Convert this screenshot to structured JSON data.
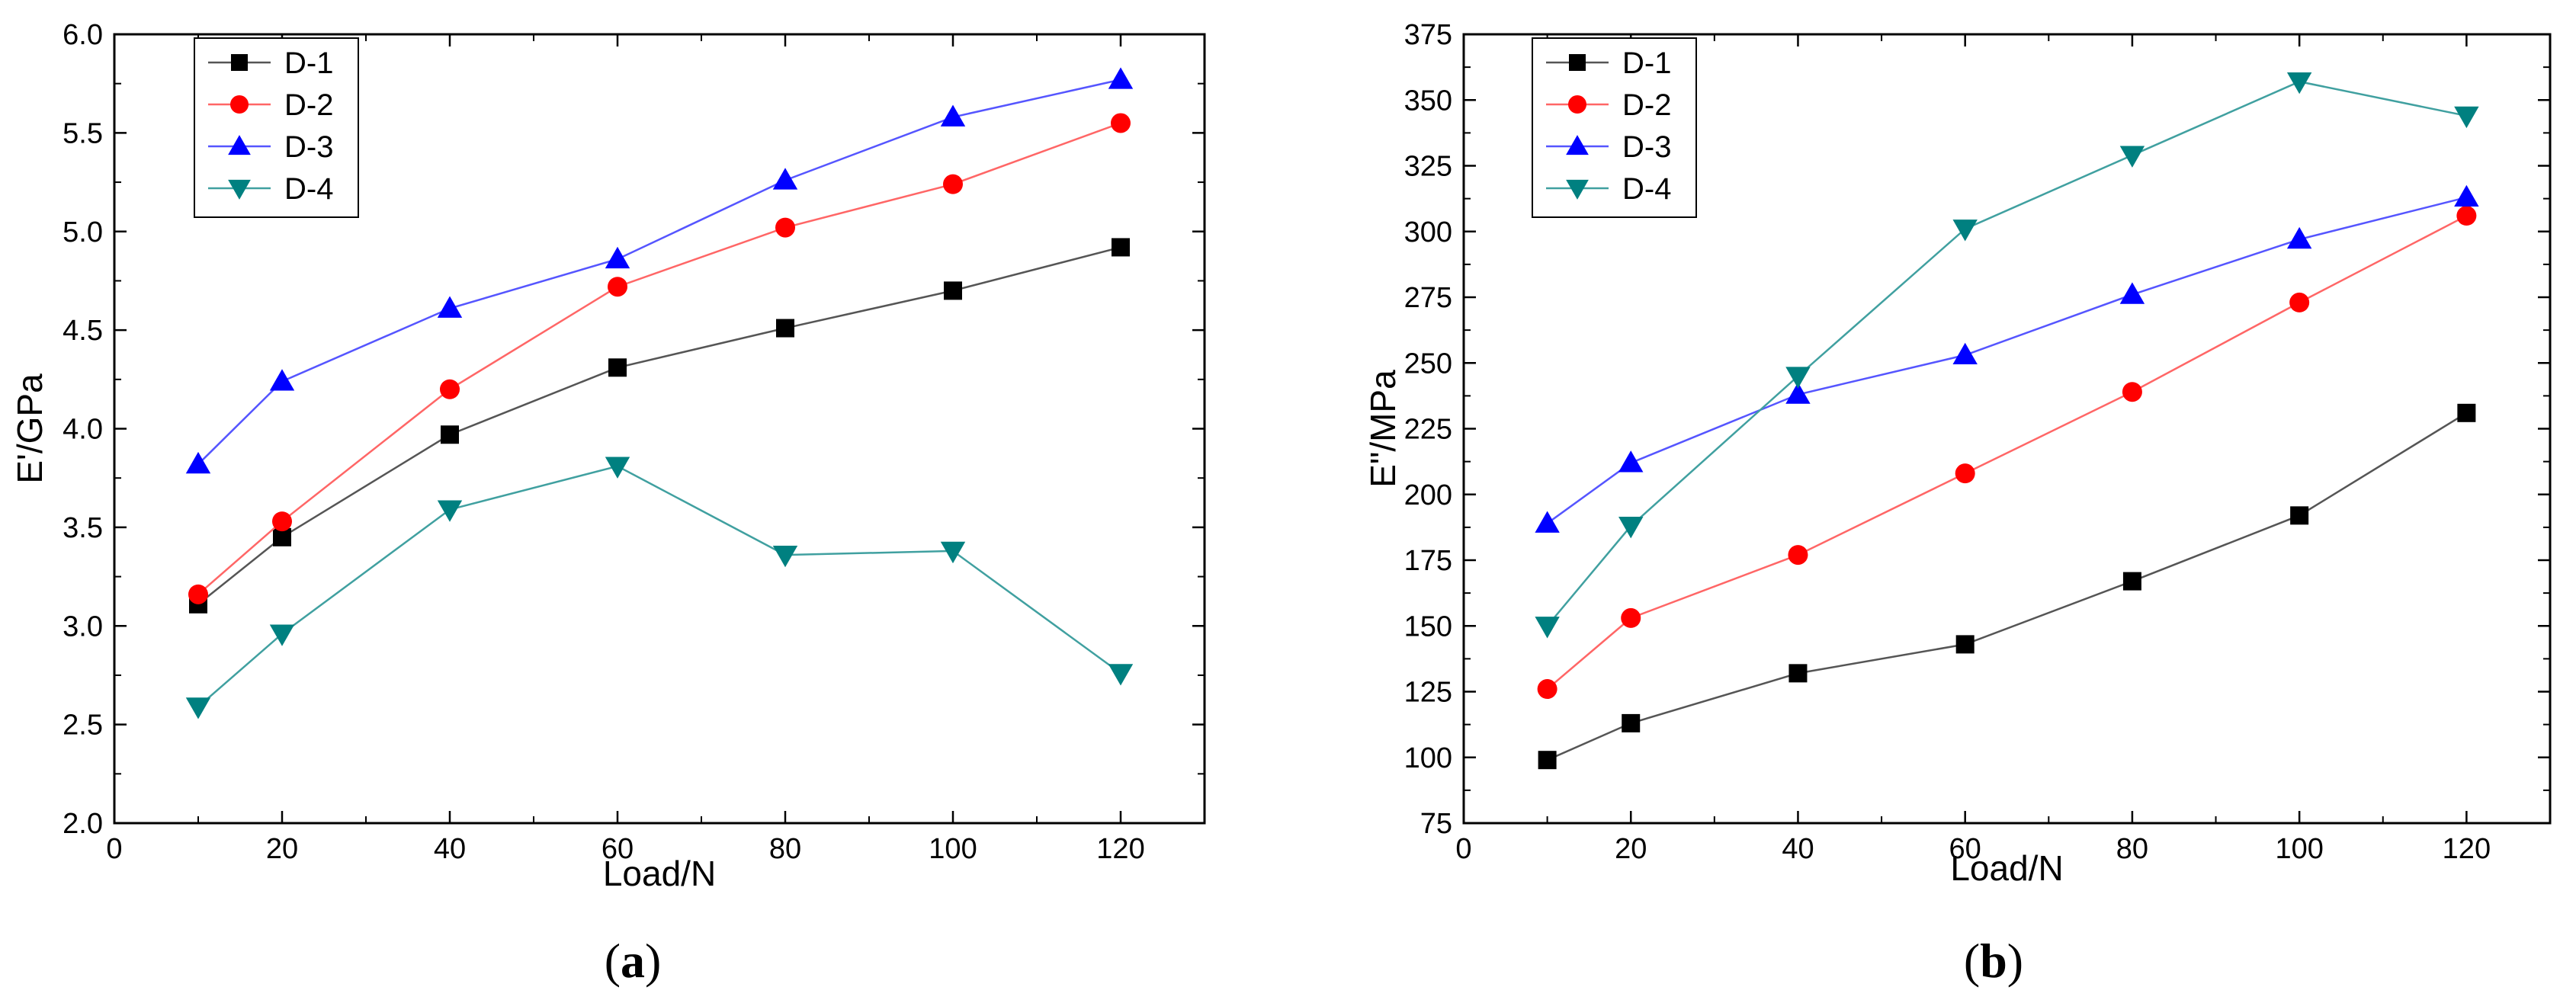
{
  "chart_data": [
    {
      "type": "line",
      "caption": {
        "open": "(",
        "letter": "a",
        "close": ")"
      },
      "xlabel": "Load/N",
      "ylabel": "E'/GPa",
      "xlim": [
        0,
        130
      ],
      "ylim": [
        2.0,
        6.0
      ],
      "xticks": [
        0,
        20,
        40,
        60,
        80,
        100,
        120
      ],
      "xtick_labels": [
        "0",
        "20",
        "40",
        "60",
        "80",
        "100",
        "120"
      ],
      "yticks": [
        2.0,
        2.5,
        3.0,
        3.5,
        4.0,
        4.5,
        5.0,
        5.5,
        6.0
      ],
      "ytick_labels": [
        "2.0",
        "2.5",
        "3.0",
        "3.5",
        "4.0",
        "4.5",
        "5.0",
        "5.5",
        "6.0"
      ],
      "legend_position": "top-left",
      "x": [
        10,
        20,
        40,
        60,
        80,
        100,
        120
      ],
      "series": [
        {
          "name": "D-1",
          "color": "#000000",
          "line_color": "#555555",
          "marker": "square",
          "values": [
            3.11,
            3.45,
            3.97,
            4.31,
            4.51,
            4.7,
            4.92
          ]
        },
        {
          "name": "D-2",
          "color": "#ff0000",
          "line_color": "#ff6666",
          "marker": "circle",
          "values": [
            3.16,
            3.53,
            4.2,
            4.72,
            5.02,
            5.24,
            5.55
          ]
        },
        {
          "name": "D-3",
          "color": "#0000ff",
          "line_color": "#5555ff",
          "marker": "triangle-up",
          "values": [
            3.82,
            4.24,
            4.61,
            4.86,
            5.26,
            5.58,
            5.77
          ]
        },
        {
          "name": "D-4",
          "color": "#008080",
          "line_color": "#40a0a0",
          "marker": "triangle-down",
          "values": [
            2.59,
            2.96,
            3.59,
            3.81,
            3.36,
            3.38,
            2.76
          ]
        }
      ]
    },
    {
      "type": "line",
      "caption": {
        "open": "(",
        "letter": "b",
        "close": ")"
      },
      "xlabel": "Load/N",
      "ylabel": "E\"/MPa",
      "xlim": [
        0,
        130
      ],
      "ylim": [
        75,
        375
      ],
      "xticks": [
        0,
        20,
        40,
        60,
        80,
        100,
        120
      ],
      "xtick_labels": [
        "0",
        "20",
        "40",
        "60",
        "80",
        "100",
        "120"
      ],
      "yticks": [
        75,
        100,
        125,
        150,
        175,
        200,
        225,
        250,
        275,
        300,
        325,
        350,
        375
      ],
      "ytick_labels": [
        "75",
        "100",
        "125",
        "150",
        "175",
        "200",
        "225",
        "250",
        "275",
        "300",
        "325",
        "350",
        "375"
      ],
      "legend_position": "top-left",
      "x": [
        10,
        20,
        40,
        60,
        80,
        100,
        120
      ],
      "series": [
        {
          "name": "D-1",
          "color": "#000000",
          "line_color": "#555555",
          "marker": "square",
          "values": [
            99,
            113,
            132,
            143,
            167,
            192,
            231
          ]
        },
        {
          "name": "D-2",
          "color": "#ff0000",
          "line_color": "#ff6666",
          "marker": "circle",
          "values": [
            126,
            153,
            177,
            208,
            239,
            273,
            306
          ]
        },
        {
          "name": "D-3",
          "color": "#0000ff",
          "line_color": "#5555ff",
          "marker": "triangle-up",
          "values": [
            189,
            212,
            238,
            253,
            276,
            297,
            313
          ]
        },
        {
          "name": "D-4",
          "color": "#008080",
          "line_color": "#40a0a0",
          "marker": "triangle-down",
          "values": [
            150,
            188,
            245,
            301,
            329,
            357,
            344
          ]
        }
      ]
    }
  ]
}
